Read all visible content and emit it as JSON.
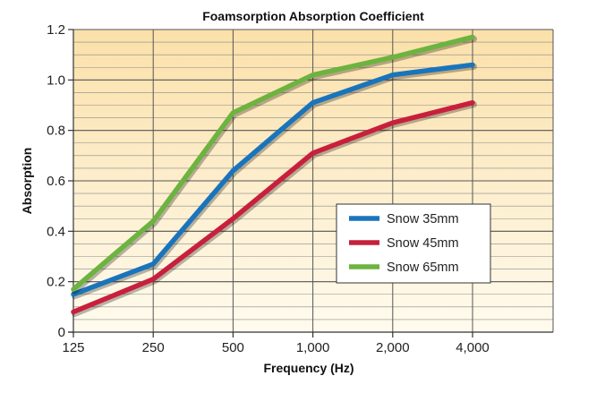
{
  "chart_data": {
    "type": "line",
    "title": "Foamsorption Absorption Coefficient",
    "xlabel": "Frequency (Hz)",
    "ylabel": "Absorption",
    "categories": [
      "125",
      "250",
      "500",
      "1,000",
      "2,000",
      "4,000"
    ],
    "y_ticks": [
      "0",
      "0.2",
      "0.4",
      "0.6",
      "0.8",
      "1.0",
      "1.2"
    ],
    "ylim": [
      0,
      1.2
    ],
    "grid": true,
    "legend_position": "lower-right",
    "background_gradient": [
      "#fbe0a9",
      "#fffbee"
    ],
    "series": [
      {
        "name": "Snow 35mm",
        "color": "#1a74bc",
        "values": [
          0.15,
          0.27,
          0.64,
          0.91,
          1.02,
          1.06
        ]
      },
      {
        "name": "Snow 45mm",
        "color": "#c8203c",
        "values": [
          0.08,
          0.21,
          0.45,
          0.71,
          0.83,
          0.91
        ]
      },
      {
        "name": "Snow 65mm",
        "color": "#6db33f",
        "values": [
          0.17,
          0.44,
          0.87,
          1.02,
          1.09,
          1.17
        ]
      }
    ]
  }
}
